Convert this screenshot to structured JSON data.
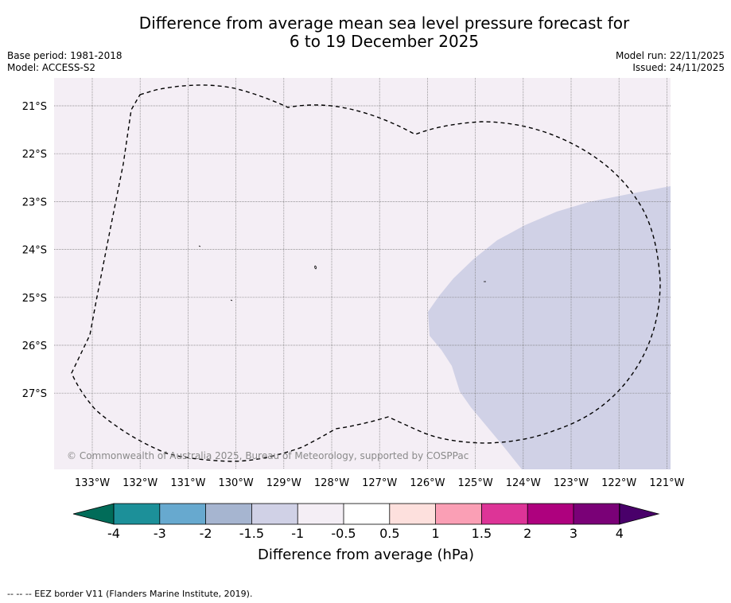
{
  "title": {
    "line1": "Difference from average mean sea level pressure forecast for",
    "line2": "6 to 19 December 2025"
  },
  "meta": {
    "base_period": "Base period: 1981-2018",
    "model": "Model: ACCESS-S2",
    "model_run": "Model run: 22/11/2025",
    "issued": "Issued: 24/11/2025"
  },
  "map": {
    "lat_labels": [
      "21°S",
      "22°S",
      "23°S",
      "24°S",
      "25°S",
      "26°S",
      "27°S"
    ],
    "lon_labels": [
      "133°W",
      "132°W",
      "131°W",
      "130°W",
      "129°W",
      "128°W",
      "127°W",
      "126°W",
      "125°W",
      "124°W",
      "123°W",
      "122°W",
      "121°W"
    ],
    "copyright": "© Commonwealth of Australia 2025, Bureau of Meteorology, supported by COSPPac",
    "colors": {
      "background": "#f4eef5",
      "anomaly_region": "#d0d1e6",
      "grid": "#777777",
      "eez_border": "#000000"
    }
  },
  "colorbar": {
    "ticks": [
      "-4",
      "-3",
      "-2",
      "-1.5",
      "-1",
      "-0.5",
      "0.5",
      "1",
      "1.5",
      "2",
      "3",
      "4"
    ],
    "colors": [
      "#016c59",
      "#1c9099",
      "#67a9cf",
      "#a6b5d0",
      "#d0d1e6",
      "#f4eef5",
      "#ffffff",
      "#fde0dd",
      "#fa9fb5",
      "#dd3497",
      "#ae017e",
      "#7a0177",
      "#49006a"
    ],
    "label": "Difference from average (hPa)"
  },
  "footer": {
    "legend_text": "--  --  -- EEZ border V11 (Flanders Marine Institute, 2019)."
  }
}
